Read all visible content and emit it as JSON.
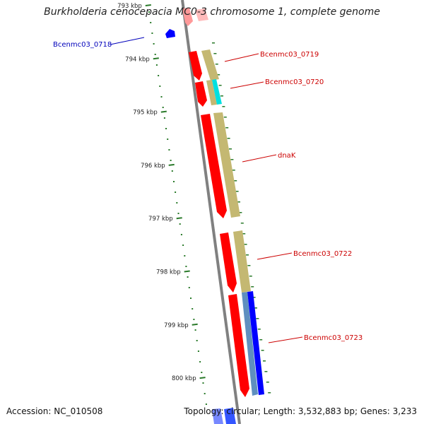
{
  "title": "Burkholderia cenocepacia MC0-3 chromosome 1, complete genome",
  "footer": {
    "accession": "Accession: NC_010508",
    "summary": "Topology: circular; Length: 3,532,883 bp; Genes: 3,233"
  },
  "colors": {
    "backbone": "#808080",
    "tick": "#2a7a2a",
    "gene_label_forward": "#cc0000",
    "gene_label_reverse": "#0000bb",
    "cds_red": "#ff0000",
    "cds_blue": "#0000ff",
    "khaki": "#c4b872",
    "cyan": "#00e0e0",
    "steel": "#5f8fbf"
  },
  "scale_ticks": [
    "793 kbp",
    "794 kbp",
    "795 kbp",
    "796 kbp",
    "797 kbp",
    "798 kbp",
    "799 kbp",
    "800 kbp"
  ],
  "gene_labels": [
    {
      "text": "Bcenmc03_0718",
      "strand": "reverse"
    },
    {
      "text": "Bcenmc03_0719",
      "strand": "forward"
    },
    {
      "text": "Bcenmc03_0720",
      "strand": "forward"
    },
    {
      "text": "dnaK",
      "strand": "forward"
    },
    {
      "text": "Bcenmc03_0722",
      "strand": "forward"
    },
    {
      "text": "Bcenmc03_0723",
      "strand": "forward"
    }
  ]
}
